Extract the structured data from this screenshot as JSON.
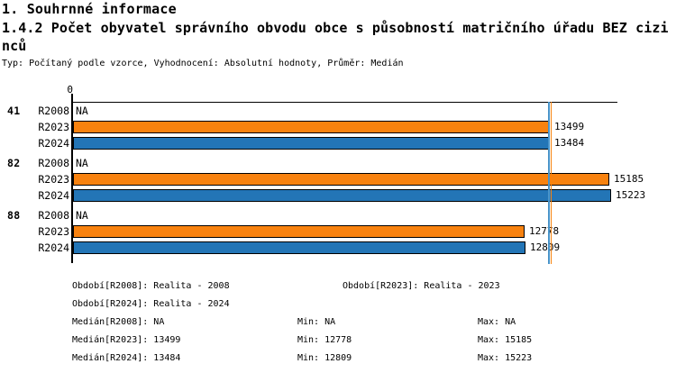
{
  "header": {
    "section_title": "1. Souhrnné informace",
    "meta": "Typ: Počítaný podle vzorce, Vyhodnocení: Absolutní hodnoty, Průměr: Medián"
  },
  "chart_data": {
    "type": "bar",
    "orientation": "horizontal",
    "title": "1.4.2 Počet obyvatel správního obvodu obce s působností matričního úřadu BEZ cizinců",
    "x_axis": {
      "origin_label": "0",
      "xlim": [
        0,
        15400
      ],
      "grid": false
    },
    "categories": [
      "41",
      "82",
      "88"
    ],
    "series": [
      {
        "name": "R2008",
        "color": null,
        "na_label": "NA",
        "values": [
          null,
          null,
          null
        ]
      },
      {
        "name": "R2023",
        "color": "#F8820F",
        "values": [
          13499,
          15185,
          12778
        ]
      },
      {
        "name": "R2024",
        "color": "#2375B6",
        "values": [
          13484,
          15223,
          12809
        ]
      }
    ],
    "bar_value_labels": true,
    "medians": [
      {
        "series": "R2024",
        "value": 13484,
        "color": "#4A94C8"
      },
      {
        "series": "R2023",
        "value": 13499,
        "color": "#F8820F"
      }
    ],
    "stats": {
      "R2008": {
        "median": "NA",
        "min": "NA",
        "max": "NA"
      },
      "R2023": {
        "median": 13499,
        "min": 12778,
        "max": 15185
      },
      "R2024": {
        "median": 13484,
        "min": 12809,
        "max": 15223
      }
    },
    "periods": {
      "R2008": "Realita - 2008",
      "R2023": "Realita - 2023",
      "R2024": "Realita - 2024"
    }
  },
  "legend": {
    "obdobi_r2008": "Období[R2008]: Realita - 2008",
    "obdobi_r2023": "Období[R2023]: Realita - 2023",
    "obdobi_r2024": "Období[R2024]: Realita - 2024",
    "median_r2008": "Medián[R2008]: NA",
    "min_r2008": "Min: NA",
    "max_r2008": "Max: NA",
    "median_r2023": "Medián[R2023]: 13499",
    "min_r2023": "Min: 12778",
    "max_r2023": "Max: 15185",
    "median_r2024": "Medián[R2024]: 13484",
    "min_r2024": "Min: 12809",
    "max_r2024": "Max: 15223"
  }
}
